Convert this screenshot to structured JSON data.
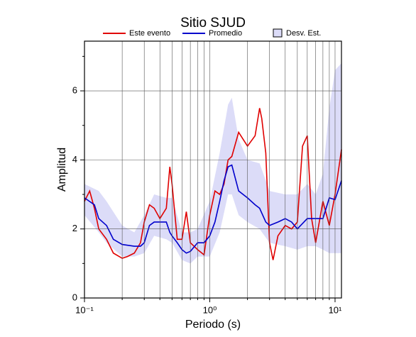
{
  "chart_data": {
    "type": "line",
    "title": "Sitio SJUD",
    "xlabel": "Periodo (s)",
    "ylabel": "Amplitud",
    "xscale": "log",
    "xlim": [
      0.1,
      11.25
    ],
    "ylim": [
      0,
      7.44
    ],
    "xticks": [
      {
        "value": 0.1,
        "label": "10⁻¹"
      },
      {
        "value": 1,
        "label": "10⁰"
      },
      {
        "value": 10,
        "label": "10¹"
      }
    ],
    "xminorticks": [
      0.2,
      0.3,
      0.4,
      0.5,
      0.6,
      0.7,
      0.8,
      0.9,
      2,
      3,
      4,
      5,
      6,
      7,
      8,
      9
    ],
    "yticks": [
      0,
      2,
      4,
      6
    ],
    "yminorticks": [
      1,
      3,
      5,
      7
    ],
    "grid": true,
    "series": [
      {
        "name": "Desv. Est.",
        "kind": "band",
        "color": "#dcdcf8",
        "x": [
          0.1,
          0.13,
          0.15,
          0.2,
          0.25,
          0.3,
          0.36,
          0.45,
          0.5,
          0.6,
          0.7,
          0.8,
          1,
          1.2,
          1.4,
          1.5,
          1.7,
          2,
          2.5,
          3,
          4,
          5,
          6,
          7,
          8,
          9,
          10,
          11.25
        ],
        "lower": [
          2.4,
          1.9,
          1.6,
          1.2,
          1.2,
          1.3,
          1.8,
          1.7,
          1.6,
          1.1,
          1.0,
          1.2,
          1.2,
          1.9,
          3.0,
          3.0,
          2.4,
          2.2,
          2.0,
          1.6,
          1.5,
          1.4,
          1.5,
          1.5,
          1.4,
          1.3,
          1.3,
          1.3
        ],
        "upper": [
          3.3,
          3.1,
          2.8,
          2.1,
          1.9,
          2.4,
          3.0,
          2.9,
          2.9,
          1.9,
          1.9,
          2.0,
          2.8,
          4.2,
          5.6,
          5.8,
          4.6,
          4.0,
          3.9,
          3.1,
          3.0,
          3.0,
          3.3,
          3.0,
          3.6,
          5.5,
          6.6,
          6.8
        ]
      },
      {
        "name": "Este evento",
        "kind": "line",
        "color": "#e00000",
        "x": [
          0.1,
          0.11,
          0.12,
          0.13,
          0.15,
          0.17,
          0.2,
          0.22,
          0.25,
          0.28,
          0.3,
          0.33,
          0.36,
          0.4,
          0.45,
          0.48,
          0.5,
          0.55,
          0.6,
          0.65,
          0.7,
          0.8,
          0.9,
          1,
          1.1,
          1.2,
          1.3,
          1.4,
          1.5,
          1.7,
          2,
          2.3,
          2.5,
          2.6,
          2.8,
          3,
          3.2,
          3.5,
          4,
          4.5,
          5,
          5.5,
          6,
          6.5,
          7,
          8,
          9,
          10,
          11.25
        ],
        "values": [
          2.8,
          3.1,
          2.6,
          2.0,
          1.7,
          1.3,
          1.15,
          1.2,
          1.3,
          1.6,
          2.2,
          2.7,
          2.6,
          2.3,
          2.6,
          3.8,
          3.3,
          1.7,
          1.7,
          2.5,
          1.6,
          1.4,
          1.25,
          2.4,
          3.1,
          3.0,
          3.3,
          4.0,
          4.1,
          4.8,
          4.4,
          4.7,
          5.5,
          5.2,
          4.2,
          1.6,
          1.1,
          1.8,
          2.1,
          2.0,
          2.2,
          4.4,
          4.7,
          2.3,
          1.6,
          2.8,
          2.1,
          3.0,
          4.3
        ]
      },
      {
        "name": "Promedio",
        "kind": "line",
        "color": "#0000cc",
        "x": [
          0.1,
          0.12,
          0.13,
          0.15,
          0.17,
          0.2,
          0.25,
          0.28,
          0.3,
          0.33,
          0.36,
          0.4,
          0.45,
          0.48,
          0.5,
          0.55,
          0.6,
          0.65,
          0.7,
          0.8,
          0.9,
          1,
          1.1,
          1.2,
          1.3,
          1.4,
          1.5,
          1.7,
          2,
          2.3,
          2.5,
          2.8,
          3,
          3.5,
          4,
          4.5,
          5,
          6,
          7,
          8,
          9,
          10,
          11.25
        ],
        "values": [
          2.9,
          2.7,
          2.3,
          2.1,
          1.7,
          1.55,
          1.5,
          1.5,
          1.6,
          2.1,
          2.2,
          2.2,
          2.2,
          1.9,
          1.8,
          1.6,
          1.4,
          1.3,
          1.35,
          1.6,
          1.6,
          1.8,
          2.2,
          2.8,
          3.4,
          3.8,
          3.85,
          3.1,
          2.9,
          2.7,
          2.6,
          2.2,
          2.1,
          2.2,
          2.3,
          2.2,
          2.0,
          2.3,
          2.3,
          2.3,
          2.9,
          2.85,
          3.4
        ]
      }
    ]
  }
}
